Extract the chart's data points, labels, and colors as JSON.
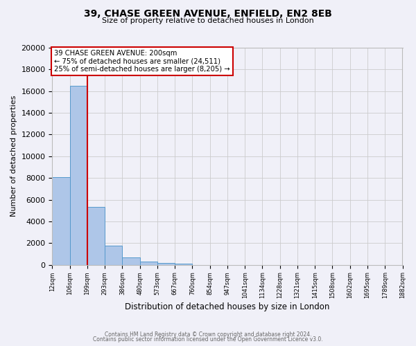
{
  "title1": "39, CHASE GREEN AVENUE, ENFIELD, EN2 8EB",
  "title2": "Size of property relative to detached houses in London",
  "xlabel": "Distribution of detached houses by size in London",
  "ylabel": "Number of detached properties",
  "bin_labels": [
    "12sqm",
    "106sqm",
    "199sqm",
    "293sqm",
    "386sqm",
    "480sqm",
    "573sqm",
    "667sqm",
    "760sqm",
    "854sqm",
    "947sqm",
    "1041sqm",
    "1134sqm",
    "1228sqm",
    "1321sqm",
    "1415sqm",
    "1508sqm",
    "1602sqm",
    "1695sqm",
    "1789sqm",
    "1882sqm"
  ],
  "bar_values": [
    8100,
    16500,
    5300,
    1750,
    700,
    300,
    150,
    100,
    0,
    0,
    0,
    0,
    0,
    0,
    0,
    0,
    0,
    0,
    0,
    0
  ],
  "bar_color": "#aec6e8",
  "bar_edge_color": "#5599cc",
  "property_line_x": 2,
  "annotation_text1": "39 CHASE GREEN AVENUE: 200sqm",
  "annotation_text2": "← 75% of detached houses are smaller (24,511)",
  "annotation_text3": "25% of semi-detached houses are larger (8,205) →",
  "annotation_box_color": "#ffffff",
  "annotation_border_color": "#cc0000",
  "red_line_color": "#cc0000",
  "ylim": [
    0,
    20000
  ],
  "yticks": [
    0,
    2000,
    4000,
    6000,
    8000,
    10000,
    12000,
    14000,
    16000,
    18000,
    20000
  ],
  "footer1": "Contains HM Land Registry data © Crown copyright and database right 2024.",
  "footer2": "Contains public sector information licensed under the Open Government Licence v3.0.",
  "grid_color": "#cccccc",
  "bg_color": "#f0f0f8"
}
